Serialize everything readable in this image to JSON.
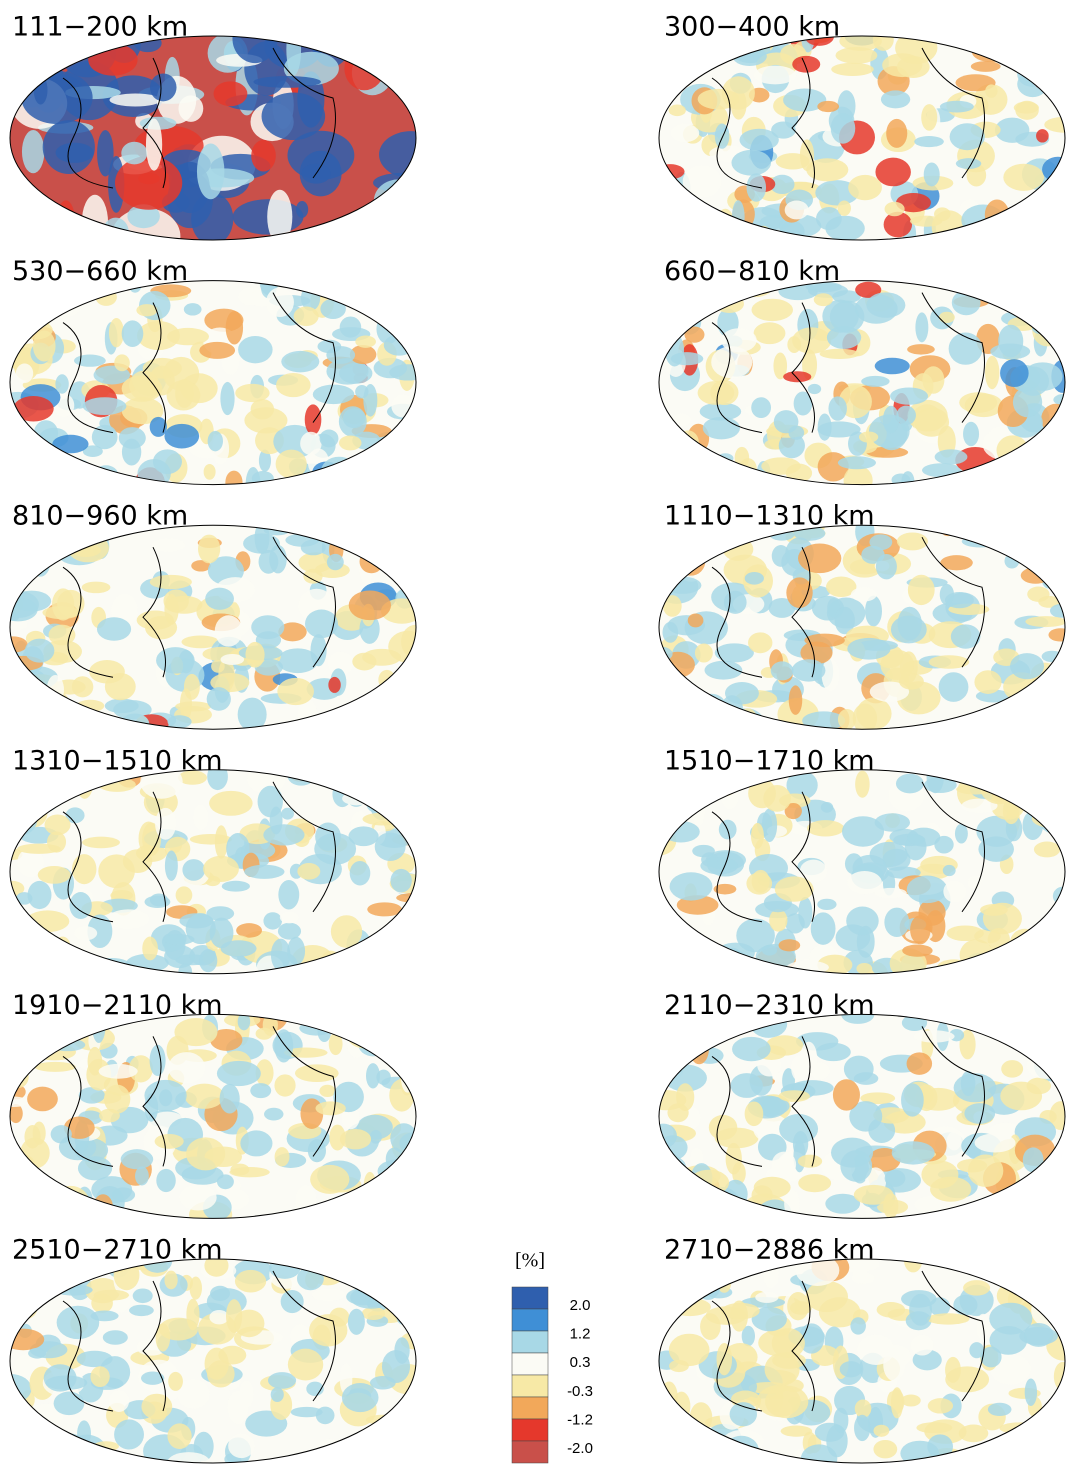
{
  "panels": [
    {
      "title": "111−200  km"
    },
    {
      "title": "300−400  km"
    },
    {
      "title": "530−660  km"
    },
    {
      "title": "660−810  km"
    },
    {
      "title": "810−960  km"
    },
    {
      "title": "1110−1310  km"
    },
    {
      "title": "1310−1510  km"
    },
    {
      "title": "1510−1710  km"
    },
    {
      "title": "1910−2110  km"
    },
    {
      "title": "2110−2310  km"
    },
    {
      "title": "2510−2710  km"
    },
    {
      "title": "2710−2886  km"
    }
  ],
  "colorbar": {
    "unit": "[%]",
    "colors": [
      "#2f5fae",
      "#3f8fd6",
      "#a8d8e6",
      "#fbfbf5",
      "#f7e9a6",
      "#f2a85a",
      "#e5382c",
      "#c9504a"
    ],
    "ticks": [
      {
        "value": 2,
        "label": "2.0"
      },
      {
        "value": 1.2,
        "label": "1.2"
      },
      {
        "value": 0.3,
        "label": "0.3"
      },
      {
        "value": -0.3,
        "label": "-0.3"
      },
      {
        "value": -1.2,
        "label": "-1.2"
      },
      {
        "value": -2,
        "label": "-2.0"
      }
    ]
  }
}
